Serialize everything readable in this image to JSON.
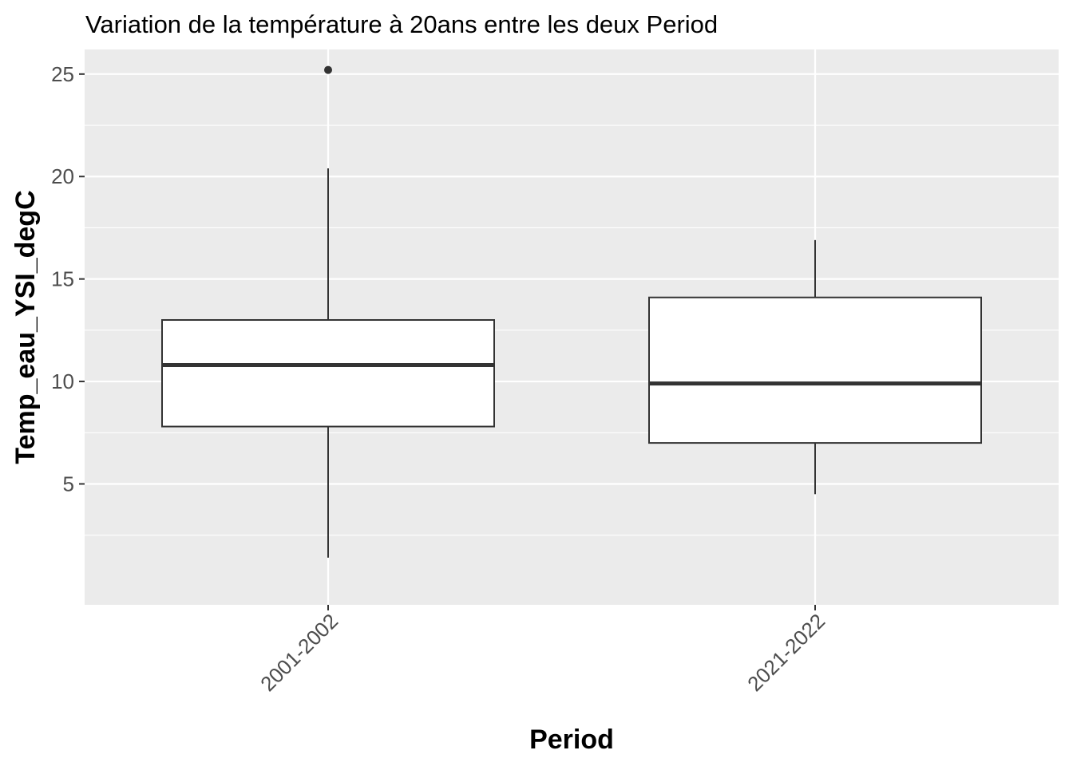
{
  "chart_data": {
    "type": "boxplot",
    "title": "Variation  de la température à 20ans entre les deux Period",
    "xlabel": "Period",
    "ylabel": "Temp_eau_YSI_degC",
    "categories": [
      "2001-2002",
      "2021-2022"
    ],
    "boxes": [
      {
        "category": "2001-2002",
        "lower_whisker": 1.4,
        "q1": 7.8,
        "median": 10.8,
        "q3": 13.0,
        "upper_whisker": 20.4,
        "outliers": [
          25.2
        ]
      },
      {
        "category": "2021-2022",
        "lower_whisker": 4.5,
        "q1": 7.0,
        "median": 9.9,
        "q3": 14.1,
        "upper_whisker": 16.9,
        "outliers": []
      }
    ],
    "ylim": [
      -0.9,
      26.2
    ],
    "yticks": [
      5,
      10,
      15,
      20,
      25
    ],
    "ytick_labels": [
      "5",
      "10",
      "15",
      "20",
      "25"
    ],
    "grid": true,
    "colors": {
      "panel_background": "#ebebeb",
      "grid_major": "#ffffff",
      "box_fill": "#ffffff",
      "box_line": "#333333",
      "tick_text": "#4d4d4d"
    }
  }
}
